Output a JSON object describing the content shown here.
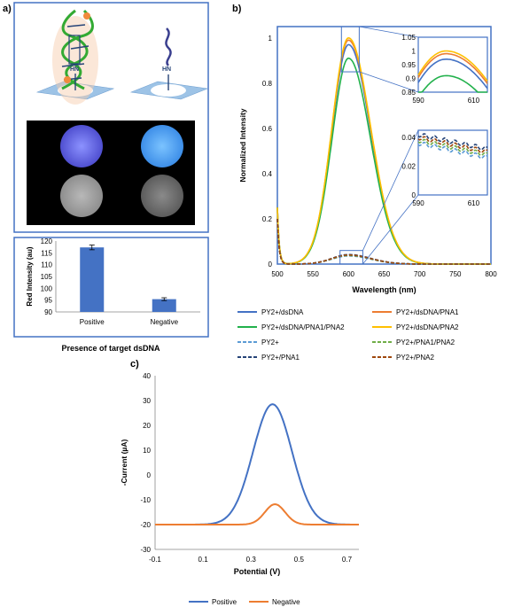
{
  "panel_labels": {
    "a": "a)",
    "b": "b)",
    "c": "c)"
  },
  "colors": {
    "frame": "#4472c4",
    "bar": "#4472c4",
    "blue": "#4472c4",
    "orange": "#ed7d31",
    "green": "#22b14c",
    "yellow": "#ffc000",
    "light_blue": "#5b9bd5",
    "light_green": "#70ad47",
    "dark_blue": "#264478",
    "dark_orange": "#9e480e",
    "dna_green": "#33aa33",
    "dna_orange": "#f08a3c",
    "surface": "#9dc3e6"
  },
  "illustration": {
    "hn_left": "HN",
    "hn_right": "HN"
  },
  "chart_data": [
    {
      "id": "a",
      "type": "bar",
      "title": "",
      "categories": [
        "Positive",
        "Negative"
      ],
      "values": [
        117.3,
        95.4
      ],
      "errors": [
        1.0,
        0.6
      ],
      "xlabel": "Presence of target dsDNA",
      "ylabel": "Red Intensity (au)",
      "ylim": [
        90,
        120
      ],
      "yticks": [
        "90",
        "95",
        "100",
        "105",
        "110",
        "115",
        "120"
      ],
      "grid": false
    },
    {
      "id": "b",
      "type": "line",
      "title": "",
      "xlabel": "Wavelength (nm)",
      "ylabel": "Normalized Intensity",
      "xlim": [
        500,
        800
      ],
      "ylim": [
        0,
        1.05
      ],
      "xticks": [
        "500",
        "550",
        "600",
        "650",
        "700",
        "750",
        "800"
      ],
      "yticks": [
        "0",
        "0.2",
        "0.4",
        "0.6",
        "0.8",
        "1"
      ],
      "legend_position": "bottom",
      "series": [
        {
          "name": "PY2+/dsDNA",
          "color": "#4472c4",
          "dash": "solid",
          "peak": 0.97
        },
        {
          "name": "PY2+/dsDNA/PNA1",
          "color": "#ed7d31",
          "dash": "solid",
          "peak": 0.99
        },
        {
          "name": "PY2+/dsDNA/PNA1/PNA2",
          "color": "#22b14c",
          "dash": "solid",
          "peak": 0.91
        },
        {
          "name": "PY2+/dsDNA/PNA2",
          "color": "#ffc000",
          "dash": "solid",
          "peak": 1.0
        },
        {
          "name": "PY2+",
          "color": "#5b9bd5",
          "dash": "dashed",
          "peak": 0.036
        },
        {
          "name": "PY2+/PNA1/PNA2",
          "color": "#70ad47",
          "dash": "dashed",
          "peak": 0.038
        },
        {
          "name": "PY2+/PNA1",
          "color": "#264478",
          "dash": "dashed",
          "peak": 0.042
        },
        {
          "name": "PY2+/PNA2",
          "color": "#9e480e",
          "dash": "dashed",
          "peak": 0.04
        }
      ],
      "inset_top": {
        "xlim": [
          590,
          615
        ],
        "ylim": [
          0.85,
          1.05
        ],
        "xticks": [
          "590",
          "610"
        ],
        "yticks": [
          "0.85",
          "0.9",
          "0.95",
          "1",
          "1.05"
        ]
      },
      "inset_bottom": {
        "xlim": [
          590,
          615
        ],
        "ylim": [
          0,
          0.045
        ],
        "xticks": [
          "590",
          "610"
        ],
        "yticks": [
          "0",
          "0.02",
          "0.04"
        ]
      }
    },
    {
      "id": "c",
      "type": "line",
      "title": "",
      "xlabel": "Potential (V)",
      "ylabel": "-Current (µA)",
      "xlim": [
        -0.1,
        0.75
      ],
      "ylim": [
        -30,
        40
      ],
      "xticks": [
        "-0.1",
        "0.1",
        "0.3",
        "0.5",
        "0.7"
      ],
      "yticks": [
        "-30",
        "-20",
        "-10",
        "0",
        "10",
        "20",
        "30",
        "40"
      ],
      "legend_position": "bottom",
      "series": [
        {
          "name": "Positive",
          "color": "#4472c4",
          "baseline": -20,
          "peak_x": 0.39,
          "peak_y": 28.5,
          "width": 0.115
        },
        {
          "name": "Negative",
          "color": "#ed7d31",
          "baseline": -20,
          "peak_x": 0.4,
          "peak_y": -11.8,
          "width": 0.06
        }
      ]
    }
  ]
}
